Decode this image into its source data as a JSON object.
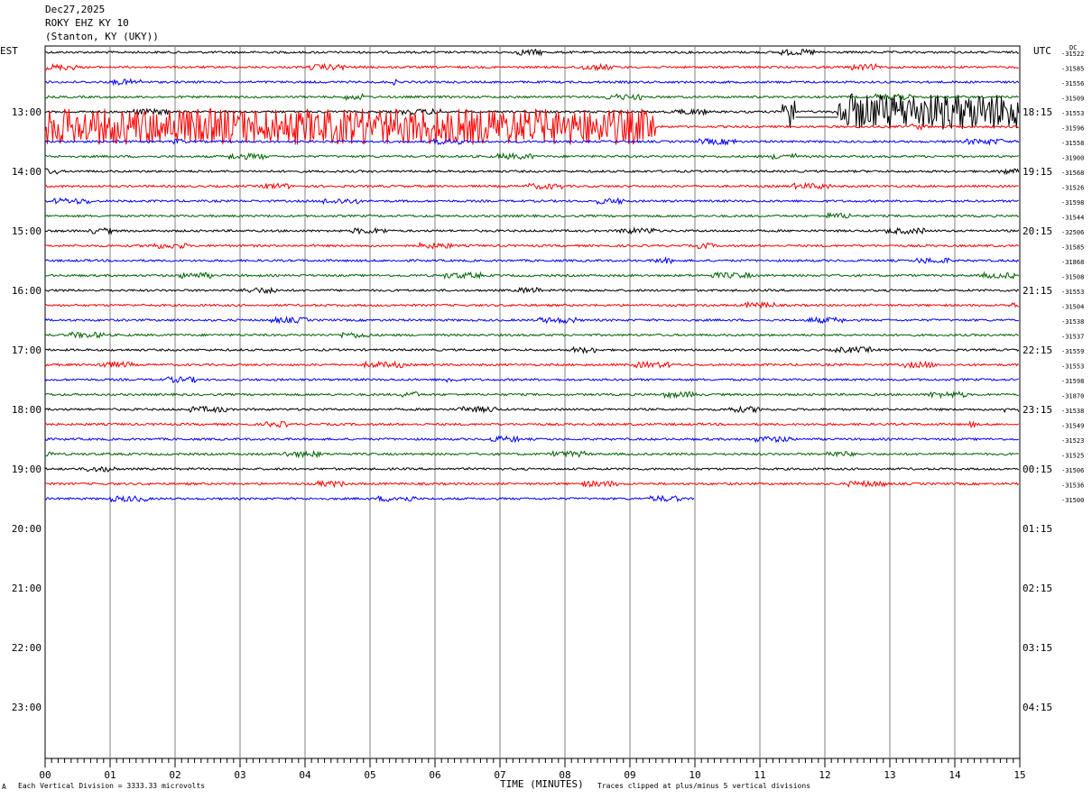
{
  "header": {
    "date": "Dec27,2025",
    "station": "ROKY EHZ KY 10",
    "location": "(Stanton, KY (UKY))"
  },
  "left_tz": "EST",
  "right_tz": "UTC",
  "dc_label": "DC",
  "footer": {
    "division": "Each Vertical Division = 3333.33 microvolts",
    "clip": "Traces clipped at plus/minus 5 vertical divisions",
    "mark": "A"
  },
  "colors": {
    "black": "#000000",
    "red": "#ff0000",
    "blue": "#0000ff",
    "green": "#006400",
    "grid": "#808080"
  },
  "chart_data": {
    "type": "line",
    "title": "ROKY EHZ KY 10",
    "xlabel": "TIME (MINUTES)",
    "ylabel": "",
    "xlim": [
      0,
      15
    ],
    "x_ticks": [
      "00",
      "01",
      "02",
      "03",
      "04",
      "05",
      "06",
      "07",
      "08",
      "09",
      "10",
      "11",
      "12",
      "13",
      "14",
      "15"
    ],
    "left_hour_labels": [
      "13:00",
      "14:00",
      "15:00",
      "16:00",
      "17:00",
      "18:00",
      "19:00",
      "20:00",
      "21:00",
      "22:00",
      "23:00"
    ],
    "right_hour_labels": [
      "18:15",
      "19:15",
      "20:15",
      "21:15",
      "22:15",
      "23:15",
      "00:15",
      "01:15",
      "02:15",
      "03:15",
      "04:15"
    ],
    "trace_color_cycle": [
      "black",
      "red",
      "blue",
      "green"
    ],
    "trace_count": 31,
    "dc_offsets": [
      "-31522",
      "-31585",
      "-31556",
      "-31509",
      "-31553",
      "-31596",
      "-31558",
      "-31900",
      "-31568",
      "-31526",
      "-31598",
      "-31544",
      "-32506",
      "-31585",
      "-31868",
      "-31508",
      "-31553",
      "-31504",
      "-31538",
      "-31537",
      "-31559",
      "-31553",
      "-31598",
      "-31870",
      "-31538",
      "-31549",
      "-31523",
      "-31525",
      "-31506",
      "-31536",
      "-31500"
    ],
    "trace_end_minutes": [
      15,
      15,
      15,
      15,
      15,
      15,
      15,
      15,
      15,
      15,
      15,
      15,
      15,
      15,
      15,
      15,
      15,
      15,
      15,
      15,
      15,
      15,
      15,
      15,
      15,
      15,
      15,
      15,
      15,
      15,
      10
    ],
    "saturated_segments": [
      {
        "trace": 5,
        "from": 0,
        "to": 9.4
      },
      {
        "trace": 4,
        "from": 11.35,
        "to": 11.55
      },
      {
        "trace": 4,
        "from": 12.2,
        "to": 15
      }
    ]
  }
}
